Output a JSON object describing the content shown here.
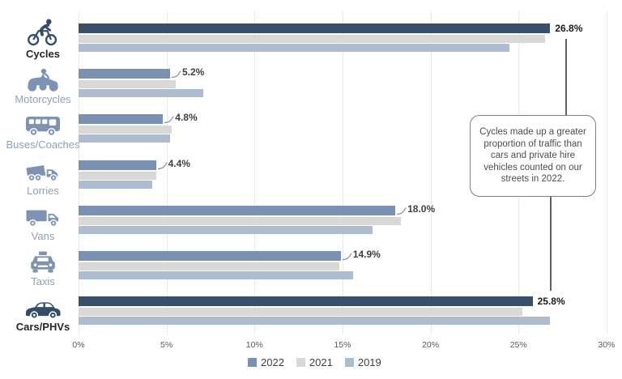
{
  "chart_data": {
    "type": "bar",
    "orientation": "horizontal",
    "title": "",
    "xlabel": "",
    "ylabel": "",
    "xlim": [
      0,
      30
    ],
    "x_ticks": [
      "0%",
      "5%",
      "10%",
      "15%",
      "20%",
      "25%",
      "30%"
    ],
    "grid": true,
    "legend_position": "bottom-center",
    "legend": [
      "2022",
      "2021",
      "2019"
    ],
    "categories": [
      "Cycles",
      "Motorcycles",
      "Buses/Coaches",
      "Lorries",
      "Vans",
      "Taxis",
      "Cars/PHVs"
    ],
    "icons": [
      "bicycle-icon",
      "motorcycle-icon",
      "bus-icon",
      "lorry-icon",
      "van-icon",
      "taxi-icon",
      "car-icon"
    ],
    "series": [
      {
        "name": "2022",
        "values": [
          26.8,
          5.2,
          4.8,
          4.4,
          18.0,
          14.9,
          25.8
        ]
      },
      {
        "name": "2021",
        "values": [
          26.5,
          5.5,
          5.3,
          4.4,
          18.3,
          14.8,
          25.2
        ]
      },
      {
        "name": "2019",
        "values": [
          24.5,
          7.1,
          5.2,
          4.2,
          16.7,
          15.6,
          26.8
        ]
      }
    ],
    "data_labels": [
      "26.8%",
      "5.2%",
      "4.8%",
      "4.4%",
      "18.0%",
      "14.9%",
      "25.8%"
    ],
    "highlighted_categories": [
      "Cycles",
      "Cars/PHVs"
    ]
  },
  "annotation": {
    "text": "Cycles made up a greater proportion of traffic than cars and private hire vehicles counted on our streets in 2022."
  },
  "colors": {
    "highlight_navy": "#384f6a",
    "series_2022": "#7b91b2",
    "series_2021": "#d9d8d6",
    "series_2019": "#aebcd1",
    "icon_muted": "#7e93b3",
    "icon_highlight": "#344e68",
    "label_muted": "#8fa0b6",
    "label_dark": "#262626",
    "value_label": "#3f3f3f",
    "axis_label": "#595959",
    "gridline": "#ebebeb",
    "callout_line": "#616161",
    "annotation_border": "#7f7f7f",
    "annotation_text": "#4d4d4d",
    "background": "#ffffff"
  }
}
